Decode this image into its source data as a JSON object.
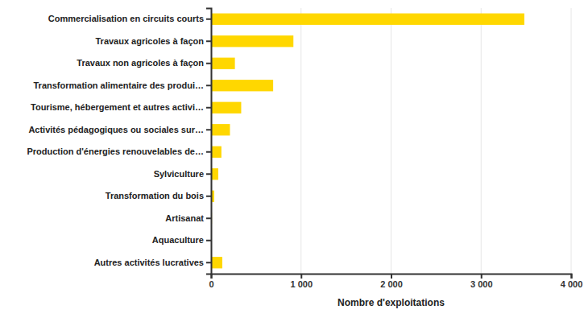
{
  "chart_data": {
    "type": "bar",
    "orientation": "horizontal",
    "x_label": "Nombre d'exploitations",
    "categories": [
      "Commercialisation en circuits courts",
      "Travaux agricoles à façon",
      "Travaux non agricoles à façon",
      "Transformation alimentaire des produi…",
      "Tourisme, hébergement et autres activi…",
      "Activités pédagogiques ou sociales sur…",
      "Production d'énergies renouvelables de…",
      "Sylviculture",
      "Transformation du bois",
      "Artisanat",
      "Aquaculture",
      "Autres activités lucratives"
    ],
    "values": [
      3480,
      915,
      265,
      690,
      335,
      210,
      115,
      80,
      35,
      10,
      3,
      125
    ],
    "color": "#ffd700",
    "xlim": [
      0,
      4000
    ],
    "xticks": [
      0,
      {
        "value": 1000,
        "label": "1 000"
      },
      {
        "value": 2000,
        "label": "2 000"
      },
      {
        "value": 3000,
        "label": "3 000"
      },
      {
        "value": 4000,
        "label": "4 000"
      }
    ],
    "grid": true
  }
}
